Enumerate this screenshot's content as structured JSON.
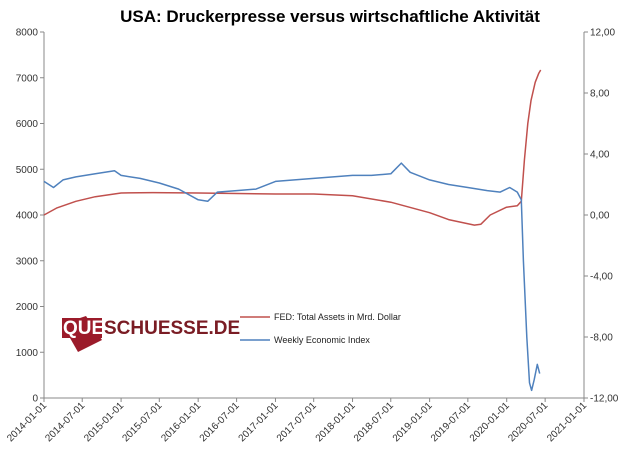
{
  "chart_data": {
    "type": "line",
    "title": "USA: Druckerpresse  versus wirtschaftliche Aktivität",
    "xlabel": "",
    "ylabel_left": "",
    "ylabel_right": "",
    "x_ticks": [
      "2014-01-01",
      "2014-07-01",
      "2015-01-01",
      "2015-07-01",
      "2016-01-01",
      "2016-07-01",
      "2017-01-01",
      "2017-07-01",
      "2018-01-01",
      "2018-07-01",
      "2019-01-01",
      "2019-07-01",
      "2020-01-01",
      "2020-07-01",
      "2021-01-01"
    ],
    "xlim": [
      "2014-01-01",
      "2021-01-01"
    ],
    "y_left_ticks": [
      "0",
      "1000",
      "2000",
      "3000",
      "4000",
      "5000",
      "6000",
      "7000",
      "8000"
    ],
    "ylim_left": [
      0,
      8000
    ],
    "y_right_ticks": [
      "12,00",
      "8,00",
      "4,00",
      "0,00",
      "-4,00",
      "-8,00",
      "-12,00"
    ],
    "ylim_right": [
      -12,
      12
    ],
    "grid": false,
    "legend_position": "center-left",
    "series": [
      {
        "name": "FED: Total Assets in Mrd. Dollar",
        "axis": "left",
        "color": "#c0504d",
        "points": [
          [
            "2014-01-01",
            4000
          ],
          [
            "2014-03-01",
            4150
          ],
          [
            "2014-06-01",
            4300
          ],
          [
            "2014-09-01",
            4400
          ],
          [
            "2015-01-01",
            4480
          ],
          [
            "2015-06-01",
            4490
          ],
          [
            "2016-01-01",
            4480
          ],
          [
            "2016-07-01",
            4470
          ],
          [
            "2017-01-01",
            4460
          ],
          [
            "2017-07-01",
            4460
          ],
          [
            "2018-01-01",
            4420
          ],
          [
            "2018-07-01",
            4280
          ],
          [
            "2019-01-01",
            4050
          ],
          [
            "2019-04-01",
            3900
          ],
          [
            "2019-08-01",
            3780
          ],
          [
            "2019-09-01",
            3800
          ],
          [
            "2019-10-15",
            4000
          ],
          [
            "2019-12-31",
            4170
          ],
          [
            "2020-02-20",
            4200
          ],
          [
            "2020-03-10",
            4300
          ],
          [
            "2020-03-25",
            5200
          ],
          [
            "2020-04-10",
            6000
          ],
          [
            "2020-04-25",
            6500
          ],
          [
            "2020-05-15",
            6900
          ],
          [
            "2020-06-01",
            7100
          ],
          [
            "2020-06-10",
            7170
          ]
        ]
      },
      {
        "name": "Weekly Economic Index",
        "axis": "right",
        "color": "#4f81bd",
        "points": [
          [
            "2014-01-01",
            2.2
          ],
          [
            "2014-02-15",
            1.8
          ],
          [
            "2014-04-01",
            2.3
          ],
          [
            "2014-06-01",
            2.5
          ],
          [
            "2014-09-01",
            2.7
          ],
          [
            "2014-12-01",
            2.9
          ],
          [
            "2015-01-01",
            2.6
          ],
          [
            "2015-04-01",
            2.4
          ],
          [
            "2015-07-01",
            2.1
          ],
          [
            "2015-10-01",
            1.7
          ],
          [
            "2016-01-01",
            1.0
          ],
          [
            "2016-02-15",
            0.9
          ],
          [
            "2016-04-01",
            1.5
          ],
          [
            "2016-07-01",
            1.6
          ],
          [
            "2016-10-01",
            1.7
          ],
          [
            "2017-01-01",
            2.2
          ],
          [
            "2017-04-01",
            2.3
          ],
          [
            "2017-07-01",
            2.4
          ],
          [
            "2017-10-01",
            2.5
          ],
          [
            "2018-01-01",
            2.6
          ],
          [
            "2018-04-01",
            2.6
          ],
          [
            "2018-07-01",
            2.7
          ],
          [
            "2018-08-20",
            3.4
          ],
          [
            "2018-10-01",
            2.8
          ],
          [
            "2019-01-01",
            2.3
          ],
          [
            "2019-04-01",
            2.0
          ],
          [
            "2019-07-01",
            1.8
          ],
          [
            "2019-10-01",
            1.6
          ],
          [
            "2019-12-01",
            1.5
          ],
          [
            "2020-01-15",
            1.8
          ],
          [
            "2020-02-20",
            1.5
          ],
          [
            "2020-03-10",
            1.0
          ],
          [
            "2020-03-20",
            -3.0
          ],
          [
            "2020-04-05",
            -8.0
          ],
          [
            "2020-04-18",
            -11.0
          ],
          [
            "2020-04-28",
            -11.5
          ],
          [
            "2020-05-10",
            -10.8
          ],
          [
            "2020-05-25",
            -9.8
          ],
          [
            "2020-06-05",
            -10.4
          ]
        ]
      }
    ]
  },
  "logo": {
    "part1": "QUER",
    "part2": "SCHUESSE.DE"
  }
}
